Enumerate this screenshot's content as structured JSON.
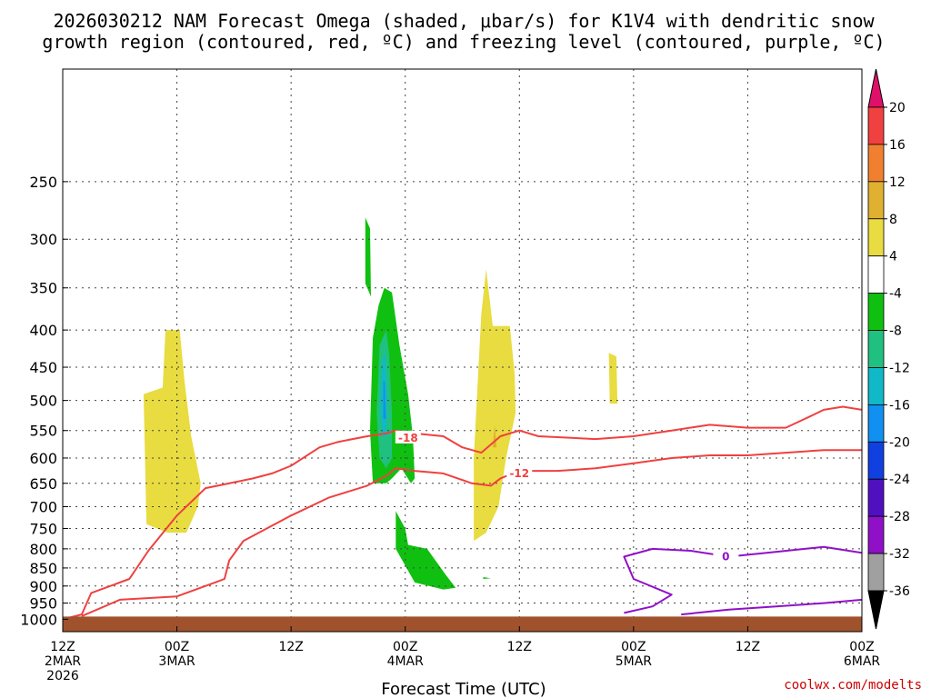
{
  "chart_data": {
    "type": "heatmap",
    "title_lines": [
      "2026030212 NAM Forecast Omega (shaded, μbar/s) for K1V4 with dendritic snow",
      "growth region (contoured, red, ºC) and freezing level (contoured, purple, ºC)"
    ],
    "xlabel": "Forecast Time (UTC)",
    "ylabel": "",
    "x_range_hours": [
      0,
      84
    ],
    "y_range_hPa": [
      1040,
      175
    ],
    "y_ticks": [
      "250",
      "300",
      "350",
      "400",
      "450",
      "500",
      "550",
      "600",
      "650",
      "700",
      "750",
      "800",
      "850",
      "900",
      "950",
      "1000"
    ],
    "y_tick_values": [
      250,
      300,
      350,
      400,
      450,
      500,
      550,
      600,
      650,
      700,
      750,
      800,
      850,
      900,
      950,
      1000
    ],
    "x_ticks": [
      {
        "hour": 0,
        "line1": "12Z",
        "line2": "2MAR",
        "line3": "2026"
      },
      {
        "hour": 12,
        "line1": "00Z",
        "line2": "3MAR",
        "line3": ""
      },
      {
        "hour": 24,
        "line1": "12Z",
        "line2": "",
        "line3": ""
      },
      {
        "hour": 36,
        "line1": "00Z",
        "line2": "4MAR",
        "line3": ""
      },
      {
        "hour": 48,
        "line1": "12Z",
        "line2": "",
        "line3": ""
      },
      {
        "hour": 60,
        "line1": "00Z",
        "line2": "5MAR",
        "line3": ""
      },
      {
        "hour": 72,
        "line1": "12Z",
        "line2": "",
        "line3": ""
      },
      {
        "hour": 84,
        "line1": "00Z",
        "line2": "6MAR",
        "line3": ""
      }
    ],
    "colorbar": {
      "labels": [
        "20",
        "16",
        "12",
        "8",
        "4",
        "-4",
        "-8",
        "-12",
        "-16",
        "-20",
        "-24",
        "-28",
        "-32",
        "-36"
      ],
      "levels": [
        20,
        16,
        12,
        8,
        4,
        -4,
        -8,
        -12,
        -16,
        -20,
        -24,
        -28,
        -32,
        -36
      ],
      "colors_top_to_bottom": [
        "#e0106a",
        "#f04040",
        "#f08030",
        "#e0b030",
        "#e8dc40",
        "#ffffff",
        "#10c010",
        "#20c080",
        "#10b8c8",
        "#1090f0",
        "#1040e0",
        "#5010c0",
        "#9010c8",
        "#a0a0a0",
        "#000000"
      ]
    },
    "shaded_regions": [
      {
        "name": "omega-pos-4-a",
        "level": 4,
        "color": "#e8dc40",
        "points": [
          [
            8.5,
            490
          ],
          [
            10.5,
            480
          ],
          [
            10.8,
            400
          ],
          [
            12.3,
            400
          ],
          [
            12.8,
            470
          ],
          [
            13.5,
            560
          ],
          [
            14.5,
            650
          ],
          [
            14.2,
            700
          ],
          [
            13,
            760
          ],
          [
            11,
            760
          ],
          [
            8.8,
            740
          ]
        ]
      },
      {
        "name": "omega-pos-4-b",
        "level": 4,
        "color": "#e8dc40",
        "points": [
          [
            43.2,
            780
          ],
          [
            43.2,
            600
          ],
          [
            43.7,
            450
          ],
          [
            44,
            380
          ],
          [
            44.5,
            330
          ],
          [
            45.2,
            395
          ],
          [
            47,
            395
          ],
          [
            47.5,
            460
          ],
          [
            47.6,
            520
          ],
          [
            46.6,
            600
          ],
          [
            45.8,
            700
          ],
          [
            44.5,
            760
          ]
        ]
      },
      {
        "name": "omega-pos-8",
        "level": 8,
        "color": "#e0b030",
        "points": [
          [
            45.2,
            580
          ],
          [
            45.4,
            540
          ],
          [
            45.6,
            580
          ]
        ]
      },
      {
        "name": "omega-pos-4-c",
        "level": 4,
        "color": "#e8dc40",
        "points": [
          [
            57.4,
            430
          ],
          [
            58.2,
            435
          ],
          [
            58.3,
            505
          ],
          [
            57.5,
            505
          ]
        ]
      },
      {
        "name": "omega-neg-4-a",
        "level": -4,
        "color": "#10c010",
        "points": [
          [
            31.8,
            280
          ],
          [
            32.3,
            290
          ],
          [
            32.4,
            360
          ],
          [
            31.8,
            345
          ]
        ]
      },
      {
        "name": "omega-neg-4-b",
        "level": -4,
        "color": "#10c010",
        "points": [
          [
            32.6,
            410
          ],
          [
            33.2,
            370
          ],
          [
            33.8,
            350
          ],
          [
            34.6,
            355
          ],
          [
            35.4,
            420
          ],
          [
            36.3,
            490
          ],
          [
            36.8,
            560
          ],
          [
            37,
            640
          ],
          [
            36.6,
            650
          ],
          [
            35.6,
            620
          ],
          [
            34.6,
            640
          ],
          [
            34,
            650
          ],
          [
            32.6,
            650
          ],
          [
            32.3,
            550
          ]
        ]
      },
      {
        "name": "omega-neg-4-c",
        "level": -4,
        "color": "#10c010",
        "points": [
          [
            35,
            710
          ],
          [
            36,
            750
          ],
          [
            36.3,
            790
          ],
          [
            38.3,
            800
          ],
          [
            40.3,
            870
          ],
          [
            41.3,
            905
          ],
          [
            40,
            910
          ],
          [
            37,
            890
          ],
          [
            35,
            800
          ]
        ]
      },
      {
        "name": "omega-neg-8",
        "level": -8,
        "color": "#20c080",
        "points": [
          [
            33.3,
            420
          ],
          [
            34,
            400
          ],
          [
            34.3,
            430
          ],
          [
            34.6,
            520
          ],
          [
            34.6,
            600
          ],
          [
            34,
            620
          ],
          [
            33.3,
            600
          ],
          [
            33,
            520
          ]
        ]
      },
      {
        "name": "omega-neg-12",
        "level": -12,
        "color": "#10b8c8",
        "points": [
          [
            33.6,
            440
          ],
          [
            33.9,
            430
          ],
          [
            34.1,
            500
          ],
          [
            34,
            560
          ],
          [
            33.6,
            560
          ],
          [
            33.4,
            500
          ]
        ]
      },
      {
        "name": "omega-neg-16",
        "level": -16,
        "color": "#1090f0",
        "points": [
          [
            33.7,
            470
          ],
          [
            33.85,
            470
          ],
          [
            33.95,
            530
          ],
          [
            33.7,
            530
          ]
        ]
      },
      {
        "name": "omega-neg-4-d",
        "level": -4,
        "color": "#10c010",
        "points": [
          [
            44.2,
            875
          ],
          [
            45,
            878
          ],
          [
            44.2,
            880
          ]
        ]
      }
    ],
    "contours": [
      {
        "name": "dgz-minus-18",
        "label": "-18",
        "level": -18,
        "color": "#f04040",
        "label_at": [
          36.3,
          563
        ],
        "points": [
          [
            0,
            1000
          ],
          [
            2,
            985
          ],
          [
            3,
            920
          ],
          [
            7,
            880
          ],
          [
            9,
            805
          ],
          [
            12,
            720
          ],
          [
            15,
            660
          ],
          [
            20,
            640
          ],
          [
            22,
            630
          ],
          [
            24,
            615
          ],
          [
            27,
            580
          ],
          [
            29,
            570
          ],
          [
            32,
            560
          ],
          [
            34,
            555
          ],
          [
            35,
            550
          ],
          [
            37,
            555
          ],
          [
            40,
            560
          ],
          [
            42,
            580
          ],
          [
            44,
            590
          ],
          [
            46,
            560
          ],
          [
            48,
            550
          ],
          [
            50,
            560
          ],
          [
            56,
            565
          ],
          [
            60,
            560
          ],
          [
            64,
            550
          ],
          [
            68,
            540
          ],
          [
            72,
            545
          ],
          [
            76,
            545
          ],
          [
            78,
            530
          ],
          [
            80,
            515
          ],
          [
            82,
            510
          ],
          [
            84,
            515
          ]
        ]
      },
      {
        "name": "dgz-minus-12",
        "label": "-12",
        "level": -12,
        "color": "#f04040",
        "label_at": [
          48,
          630
        ],
        "points": [
          [
            2,
            990
          ],
          [
            6,
            940
          ],
          [
            12,
            930
          ],
          [
            16,
            890
          ],
          [
            17,
            880
          ],
          [
            17.5,
            830
          ],
          [
            19,
            780
          ],
          [
            24,
            720
          ],
          [
            28,
            680
          ],
          [
            32,
            655
          ],
          [
            34,
            635
          ],
          [
            35,
            620
          ],
          [
            37,
            625
          ],
          [
            40,
            630
          ],
          [
            43,
            650
          ],
          [
            45,
            655
          ],
          [
            46,
            640
          ],
          [
            48,
            625
          ],
          [
            52,
            625
          ],
          [
            56,
            620
          ],
          [
            60,
            610
          ],
          [
            64,
            600
          ],
          [
            68,
            595
          ],
          [
            72,
            595
          ],
          [
            76,
            590
          ],
          [
            80,
            585
          ],
          [
            84,
            585
          ]
        ]
      },
      {
        "name": "freezing-level-0",
        "label": "0",
        "level": 0,
        "color": "#9010c8",
        "label_at": [
          69.7,
          820
        ],
        "points": [
          [
            59,
            980
          ],
          [
            62,
            960
          ],
          [
            64,
            925
          ],
          [
            60,
            880
          ],
          [
            59,
            820
          ],
          [
            62,
            800
          ],
          [
            66,
            805
          ],
          [
            70,
            820
          ],
          [
            74,
            810
          ],
          [
            78,
            800
          ],
          [
            80,
            795
          ],
          [
            84,
            810
          ]
        ]
      },
      {
        "name": "freezing-level-0-b",
        "label": "",
        "level": 0,
        "color": "#9010c8",
        "label_at": null,
        "points": [
          [
            65,
            985
          ],
          [
            70,
            970
          ],
          [
            75,
            960
          ],
          [
            80,
            950
          ],
          [
            84,
            940
          ]
        ]
      }
    ],
    "surface_fill_color": "#a0522d",
    "credit": "coolwx.com/modelts"
  }
}
